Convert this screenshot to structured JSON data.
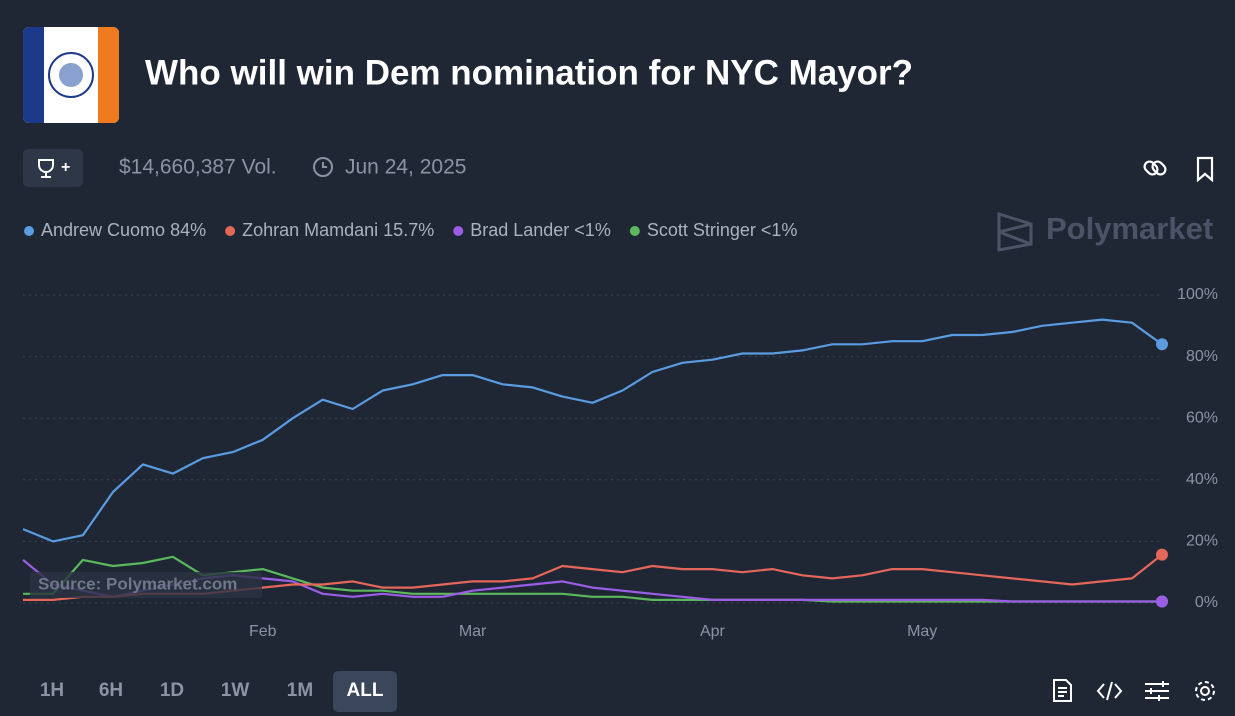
{
  "header": {
    "title": "Who will win Dem nomination for NYC Mayor?",
    "volume": "$14,660,387 Vol.",
    "date": "Jun 24, 2025"
  },
  "watermark": "Polymarket",
  "source": "Source: Polymarket.com",
  "time_buttons": [
    "1H",
    "6H",
    "1D",
    "1W",
    "1M",
    "ALL"
  ],
  "active_button": "ALL",
  "chart_data": {
    "type": "line",
    "categories": [
      null,
      null,
      null,
      null,
      null,
      null,
      null,
      null,
      "Feb",
      null,
      null,
      null,
      null,
      null,
      null,
      "Mar",
      null,
      null,
      null,
      null,
      null,
      null,
      null,
      "Apr",
      null,
      null,
      null,
      null,
      null,
      null,
      "May",
      null,
      null,
      null,
      null,
      null,
      null,
      null,
      null
    ],
    "series": [
      {
        "name": "Andrew Cuomo",
        "current_label": "84%",
        "color": "#5b9be0",
        "values": [
          24,
          20,
          22,
          36,
          45,
          42,
          47,
          49,
          53,
          60,
          66,
          63,
          69,
          71,
          74,
          74,
          71,
          70,
          67,
          65,
          69,
          75,
          78,
          79,
          81,
          81,
          82,
          84,
          84,
          85,
          85,
          87,
          87,
          88,
          90,
          91,
          92,
          91,
          84
        ]
      },
      {
        "name": "Zohran Mamdani",
        "current_label": "15.7%",
        "color": "#e5675a",
        "values": [
          1,
          1,
          2,
          2,
          3,
          3,
          3,
          4,
          5,
          6,
          6,
          7,
          5,
          5,
          6,
          7,
          7,
          8,
          12,
          11,
          10,
          12,
          11,
          11,
          10,
          11,
          9,
          8,
          9,
          11,
          11,
          10,
          9,
          8,
          7,
          6,
          7,
          8,
          15.7
        ]
      },
      {
        "name": "Brad Lander",
        "current_label": "<1%",
        "color": "#9b5de5",
        "values": [
          14,
          6,
          4,
          2,
          4,
          6,
          8,
          9,
          8,
          7,
          3,
          2,
          3,
          2,
          2,
          4,
          5,
          6,
          7,
          5,
          4,
          3,
          2,
          1,
          1,
          1,
          1,
          1,
          1,
          1,
          1,
          1,
          1,
          0.5,
          0.5,
          0.5,
          0.5,
          0.5,
          0.5
        ]
      },
      {
        "name": "Scott Stringer",
        "current_label": "<1%",
        "color": "#5cb85c",
        "values": [
          3,
          3,
          14,
          12,
          13,
          15,
          9,
          10,
          11,
          8,
          5,
          4,
          4,
          3,
          3,
          3,
          3,
          3,
          3,
          2,
          2,
          1,
          1,
          1,
          1,
          1,
          1,
          0.5,
          0.5,
          0.5,
          0.5,
          0.5,
          0.5,
          0.5,
          0.5,
          0.5,
          0.5,
          0.5,
          0.5
        ]
      }
    ],
    "ylim": [
      0,
      100
    ],
    "yticks": [
      {
        "value": 0,
        "label": "0%"
      },
      {
        "value": 20,
        "label": "20%"
      },
      {
        "value": 40,
        "label": "40%"
      },
      {
        "value": 60,
        "label": "60%"
      },
      {
        "value": 80,
        "label": "80%"
      },
      {
        "value": 100,
        "label": "100%"
      }
    ],
    "grid": true
  }
}
